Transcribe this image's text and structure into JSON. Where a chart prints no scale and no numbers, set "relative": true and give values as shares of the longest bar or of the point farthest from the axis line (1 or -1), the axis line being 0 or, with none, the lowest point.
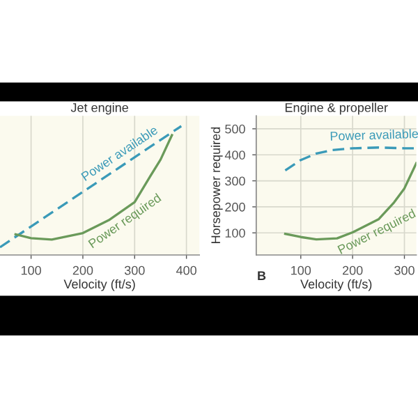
{
  "chart_data": [
    {
      "type": "line",
      "title": "Jet engine",
      "xlabel": "Velocity (ft/s)",
      "relative": true,
      "xlim": [
        40,
        425
      ],
      "xticks": [
        100,
        200,
        300,
        400
      ],
      "grid": "x",
      "legend": false,
      "series": [
        {
          "name": "Power available",
          "color": "#3a9ab8",
          "line_style": "dashed",
          "x": [
            40,
            390
          ],
          "values": [
            0.06,
            1.0
          ]
        },
        {
          "name": "Power required",
          "color": "#6a9a5a",
          "line_style": "solid",
          "x": [
            70,
            100,
            140,
            200,
            250,
            300,
            330,
            350,
            372
          ],
          "values": [
            0.16,
            0.13,
            0.12,
            0.17,
            0.27,
            0.41,
            0.61,
            0.74,
            0.93
          ]
        }
      ]
    },
    {
      "type": "line",
      "title": "Engine & propeller",
      "xlabel": "Velocity (ft/s)",
      "ylabel": "Horsepower required",
      "xlim": [
        14,
        323
      ],
      "xticks": [
        100,
        200,
        300
      ],
      "ylim": [
        15,
        550
      ],
      "yticks": [
        100,
        200,
        300,
        400,
        500
      ],
      "grid": true,
      "legend": false,
      "annotations": [
        "B"
      ],
      "series": [
        {
          "name": "Power available",
          "color": "#3a9ab8",
          "line_style": "dashed",
          "x": [
            70,
            100,
            130,
            160,
            200,
            250,
            300,
            323
          ],
          "values": [
            340,
            380,
            405,
            418,
            425,
            428,
            425,
            425
          ]
        },
        {
          "name": "Power required",
          "color": "#6a9a5a",
          "line_style": "solid",
          "x": [
            70,
            100,
            130,
            170,
            200,
            250,
            280,
            300,
            323
          ],
          "values": [
            96,
            84,
            75,
            79,
            102,
            152,
            217,
            271,
            368
          ]
        }
      ]
    }
  ]
}
